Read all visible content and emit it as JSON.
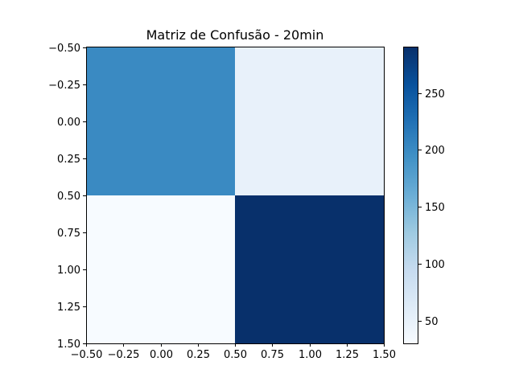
{
  "chart_data": {
    "type": "heatmap",
    "title": "Matriz de Confusão - 20min",
    "xlabel": "",
    "ylabel": "",
    "matrix": [
      [
        200,
        50
      ],
      [
        30,
        290
      ]
    ],
    "xlim": [
      -0.5,
      1.5
    ],
    "ylim": [
      1.5,
      -0.5
    ],
    "x_ticks": [
      -0.5,
      -0.25,
      0.0,
      0.25,
      0.5,
      0.75,
      1.0,
      1.25,
      1.5
    ],
    "x_tick_labels": [
      "−0.50",
      "−0.25",
      "0.00",
      "0.25",
      "0.50",
      "0.75",
      "1.00",
      "1.25",
      "1.50"
    ],
    "y_ticks": [
      -0.5,
      -0.25,
      0.0,
      0.25,
      0.5,
      0.75,
      1.0,
      1.25,
      1.5
    ],
    "y_tick_labels": [
      "−0.50",
      "−0.25",
      "0.00",
      "0.25",
      "0.50",
      "0.75",
      "1.00",
      "1.25",
      "1.50"
    ],
    "colorbar": {
      "colormap": "Blues",
      "vmin": 30,
      "vmax": 290,
      "ticks": [
        50,
        100,
        150,
        200,
        250
      ],
      "tick_labels": [
        "50",
        "100",
        "150",
        "200",
        "250"
      ]
    },
    "grid": false
  }
}
